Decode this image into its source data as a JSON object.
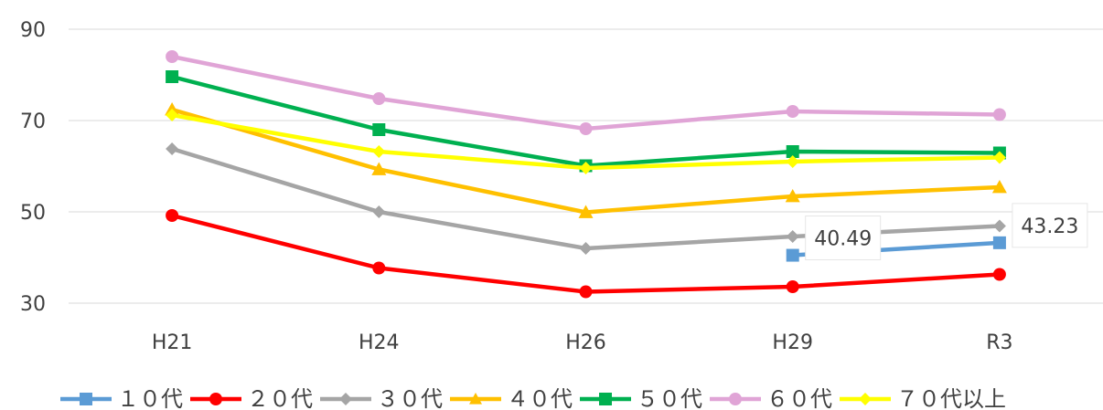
{
  "chart_data": {
    "type": "line",
    "categories": [
      "H21",
      "H24",
      "H26",
      "H29",
      "R3"
    ],
    "ylim": [
      30,
      90
    ],
    "yticks": [
      30,
      50,
      70,
      90
    ],
    "grid": true,
    "legend_position": "bottom",
    "series": [
      {
        "name": "１０代",
        "color": "#5B9BD5",
        "marker": "square",
        "values": [
          null,
          null,
          null,
          40.49,
          43.23
        ]
      },
      {
        "name": "２０代",
        "color": "#FF0000",
        "marker": "circle",
        "values": [
          49.2,
          37.7,
          32.5,
          33.6,
          36.3
        ]
      },
      {
        "name": "３０代",
        "color": "#A5A5A5",
        "marker": "diamond",
        "values": [
          63.8,
          50.0,
          42.0,
          44.6,
          46.9
        ]
      },
      {
        "name": "４０代",
        "color": "#FFC000",
        "marker": "triangle",
        "values": [
          72.4,
          59.3,
          49.9,
          53.4,
          55.4
        ]
      },
      {
        "name": "５０代",
        "color": "#00B050",
        "marker": "square",
        "values": [
          79.6,
          68.0,
          60.1,
          63.2,
          62.9
        ]
      },
      {
        "name": "６０代",
        "color": "#E0A4D6",
        "marker": "circle",
        "values": [
          84.0,
          74.8,
          68.2,
          72.0,
          71.3
        ]
      },
      {
        "name": "７０代以上",
        "color": "#FFFF00",
        "marker": "diamond",
        "values": [
          71.2,
          63.2,
          59.6,
          61.0,
          61.9
        ]
      }
    ],
    "data_labels": [
      {
        "series": "１０代",
        "category": "H29",
        "text": "40.49"
      },
      {
        "series": "１０代",
        "category": "R3",
        "text": "43.23"
      }
    ]
  }
}
